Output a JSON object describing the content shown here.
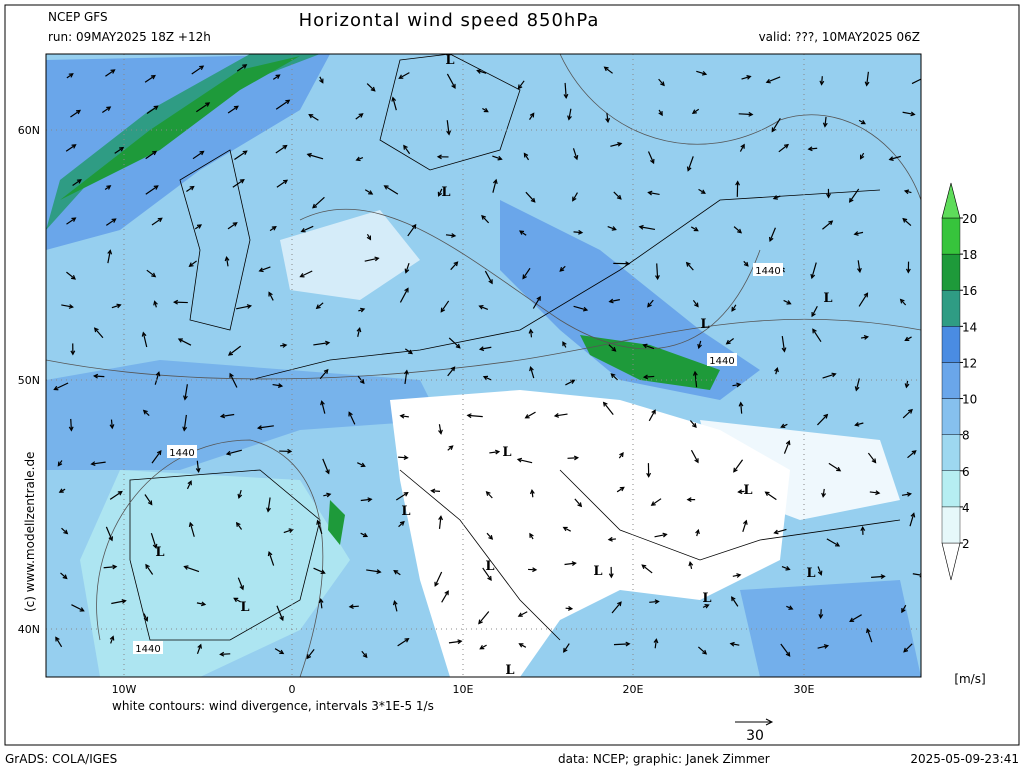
{
  "header": {
    "model": "NCEP GFS",
    "run": "run: 09MAY2025 18Z +12h",
    "title": "Horizontal wind speed 850hPa",
    "valid": "valid: ???, 10MAY2025 06Z"
  },
  "map": {
    "lat_labels": [
      "60N",
      "50N",
      "40N"
    ],
    "lon_labels": [
      "10W",
      "0",
      "10E",
      "20E",
      "30E"
    ],
    "contour_labels": [
      "1440",
      "1440",
      "1440",
      "1440"
    ],
    "lows": [
      "L",
      "L",
      "L",
      "L",
      "L",
      "L",
      "L",
      "L",
      "L",
      "L",
      "L",
      "L",
      "L",
      "L"
    ],
    "copyright": "(c) www.modellzentrale.de"
  },
  "colorbar": {
    "levels": [
      2,
      4,
      6,
      8,
      10,
      12,
      14,
      16,
      18,
      20
    ],
    "colors": [
      "#ffffff",
      "#e6f8fa",
      "#b6eef2",
      "#9ed8f0",
      "#86c0ee",
      "#6aa6ea",
      "#4a8ce2",
      "#2f9c84",
      "#1e9a3a",
      "#37c43c",
      "#5edc5a"
    ],
    "unit": "[m/s]"
  },
  "footer": {
    "note": "white contours: wind divergence, intervals 3*1E-5 1/s",
    "vector_ref": "30",
    "software": "GrADS: COLA/IGES",
    "credits": "data: NCEP; graphic: Janek Zimmer",
    "timestamp": "2025-05-09-23:41"
  }
}
